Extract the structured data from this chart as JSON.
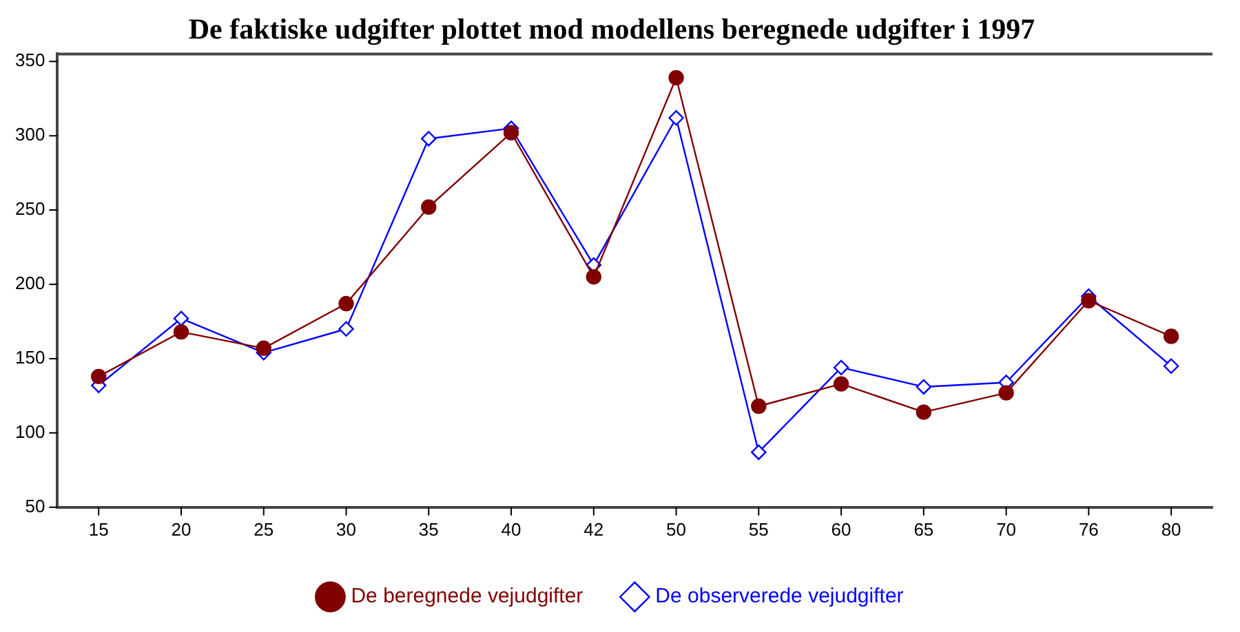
{
  "chart_data": {
    "type": "line",
    "title": "De faktiske udgifter plottet mod modellens beregnede udgifter i 1997",
    "categories": [
      "15",
      "20",
      "25",
      "30",
      "35",
      "40",
      "42",
      "50",
      "55",
      "60",
      "65",
      "70",
      "76",
      "80"
    ],
    "series": [
      {
        "name": "De beregnede vejudgifter",
        "color": "#800000",
        "marker": "circle",
        "values": [
          138,
          168,
          157,
          187,
          252,
          302,
          205,
          339,
          118,
          133,
          114,
          127,
          189,
          165
        ]
      },
      {
        "name": "De observerede vejudgifter",
        "color": "#0000ff",
        "marker": "diamond",
        "values": [
          132,
          177,
          154,
          170,
          298,
          305,
          213,
          312,
          87,
          144,
          131,
          134,
          192,
          145
        ]
      }
    ],
    "ylim": [
      50,
      355
    ],
    "yticks": [
      50,
      100,
      150,
      200,
      250,
      300,
      350
    ],
    "grid": false,
    "legend": "bottom",
    "line_style": "solid"
  }
}
